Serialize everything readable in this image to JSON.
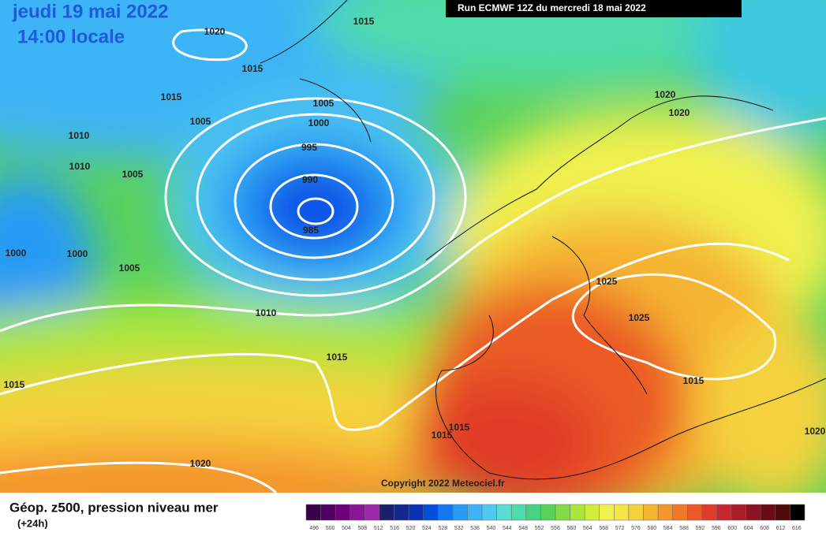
{
  "header": {
    "date": "jeudi 19 mai 2022",
    "time": "14:00 locale",
    "run": "Run ECMWF 12Z du mercredi 18 mai 2022"
  },
  "isobar_labels": [
    1020,
    1015,
    1015,
    1015,
    1005,
    1005,
    1010,
    1010,
    1005,
    1000,
    995,
    990,
    985,
    1000,
    1000,
    1005,
    1010,
    1015,
    1015,
    1020,
    1020,
    1020,
    1025,
    1025,
    1015,
    1015,
    1020,
    1015
  ],
  "copyright": "Copyright 2022 Meteociel.fr",
  "footer": {
    "title": "Géop. z500, pression niveau mer",
    "lead": "(+24h)"
  },
  "colorbar": {
    "colors": [
      "#3c0046",
      "#500060",
      "#6e0078",
      "#8c1496",
      "#a028aa",
      "#1e1e6e",
      "#14288c",
      "#0a32b4",
      "#0050dc",
      "#1478f0",
      "#289bf5",
      "#3cb4f5",
      "#50c8f0",
      "#5adcd2",
      "#50dcaa",
      "#46d282",
      "#5ad25a",
      "#82dc46",
      "#aae63c",
      "#d2ee3c",
      "#f0f050",
      "#f5e646",
      "#f5d23c",
      "#f5b432",
      "#f5962d",
      "#f07828",
      "#eb5a28",
      "#e13c28",
      "#c8282d",
      "#aa1e28",
      "#8c1420",
      "#6e0a14",
      "#500a0a",
      "#000000"
    ],
    "ticks": [
      496,
      500,
      504,
      508,
      512,
      516,
      520,
      524,
      528,
      532,
      536,
      540,
      544,
      548,
      552,
      556,
      560,
      564,
      568,
      572,
      576,
      580,
      584,
      588,
      592,
      596,
      600,
      604,
      608,
      612,
      616
    ]
  }
}
